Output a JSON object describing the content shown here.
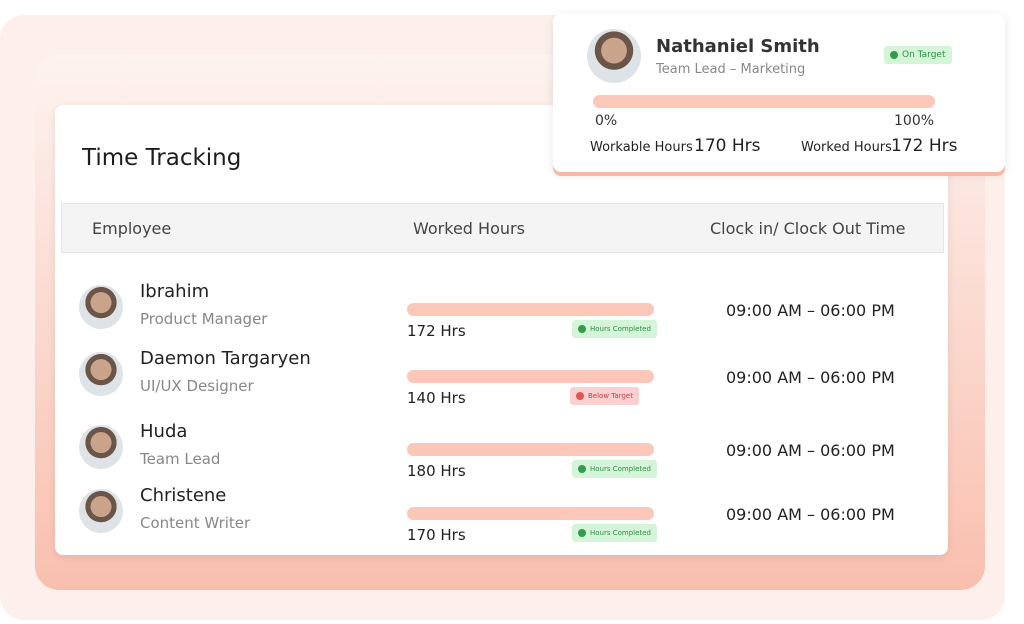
{
  "profile_card": {
    "name": "Nathaniel Smith",
    "role": "Team Lead – Marketing",
    "status": "On Target",
    "progress_start": "0%",
    "progress_end": "100%",
    "workable_label": "Workable Hours",
    "workable_value": "170 Hrs",
    "worked_label": "Worked Hours",
    "worked_value": "172 Hrs"
  },
  "table": {
    "title": "Time Tracking",
    "headers": [
      "Employee",
      "Worked Hours",
      "Clock in/ Clock Out Time"
    ],
    "rows": [
      {
        "name": "Ibrahim",
        "role": "Product Manager",
        "hours": "172 Hrs",
        "status": "Hours Completed",
        "time": "09:00 AM – 06:00 PM"
      },
      {
        "name": "Daemon Targaryen",
        "role": "UI/UX Designer",
        "hours": "140 Hrs",
        "status": "Below Target",
        "time": "09:00 AM – 06:00 PM"
      },
      {
        "name": "Huda",
        "role": "Team Lead",
        "hours": "180 Hrs",
        "status": "Hours Completed",
        "time": "09:00 AM – 06:00 PM"
      },
      {
        "name": "Christene",
        "role": "Content Writer",
        "hours": "170 Hrs",
        "status": "Hours Completed",
        "time": "09:00 AM – 06:00 PM"
      }
    ]
  }
}
